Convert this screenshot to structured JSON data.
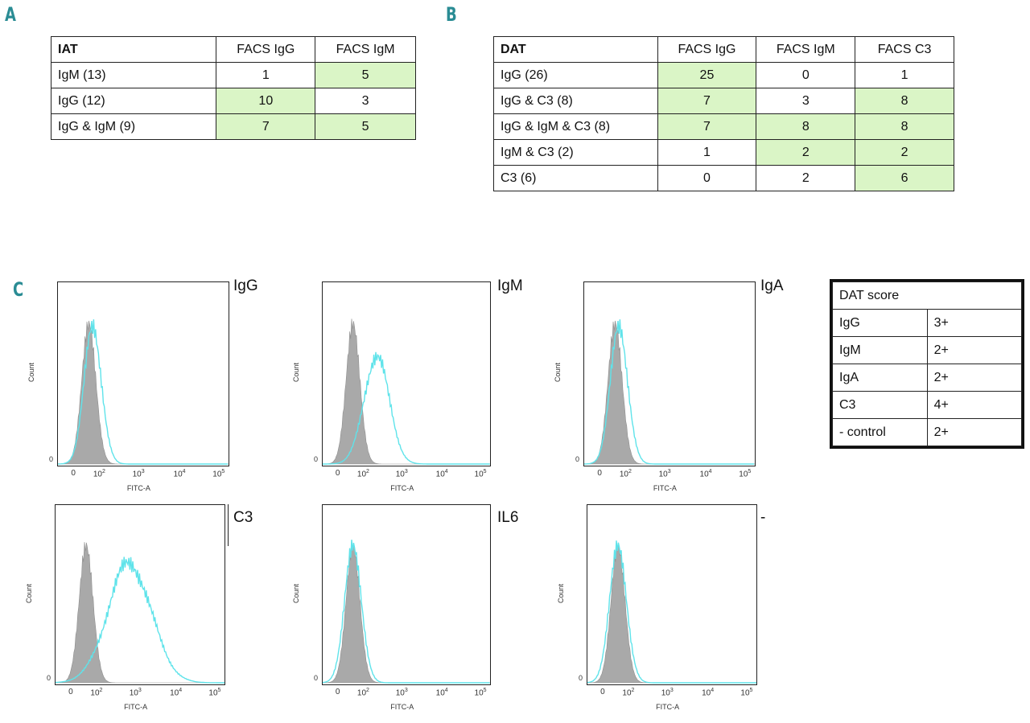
{
  "panels": {
    "a": "A",
    "b": "B",
    "c": "C"
  },
  "colors": {
    "highlight": "#daf5c6",
    "control_fill": "#a9a9a9",
    "sample_line": "#5fe3ea",
    "letter": "#2a8c94"
  },
  "table_a": {
    "header": [
      "IAT",
      "FACS IgG",
      "FACS IgM"
    ],
    "rows": [
      {
        "label": "IgM (13)",
        "igg": "1",
        "igm": "5"
      },
      {
        "label": "IgG (12)",
        "igg": "10",
        "igm": "3"
      },
      {
        "label": "IgG & IgM (9)",
        "igg": "7",
        "igm": "5"
      }
    ]
  },
  "table_b": {
    "header": [
      "DAT",
      "FACS IgG",
      "FACS IgM",
      "FACS C3"
    ],
    "rows": [
      {
        "label": "IgG (26)",
        "igg": "25",
        "igm": "0",
        "c3": "1"
      },
      {
        "label": "IgG & C3 (8)",
        "igg": "7",
        "igm": "3",
        "c3": "8"
      },
      {
        "label": "IgG & IgM & C3 (8)",
        "igg": "7",
        "igm": "8",
        "c3": "8"
      },
      {
        "label": "IgM & C3 (2)",
        "igg": "1",
        "igm": "2",
        "c3": "2"
      },
      {
        "label": "C3 (6)",
        "igg": "0",
        "igm": "2",
        "c3": "6"
      }
    ]
  },
  "dat_score": {
    "title": "DAT score",
    "rows": [
      {
        "label": "IgG",
        "score": "3+"
      },
      {
        "label": "IgM",
        "score": "2+"
      },
      {
        "label": "IgA",
        "score": "2+"
      },
      {
        "label": "C3",
        "score": "4+"
      },
      {
        "label": "- control",
        "score": "2+"
      }
    ]
  },
  "histograms": {
    "common": {
      "ylabel": "Count",
      "xlabel": "FITC-A",
      "zero": "0",
      "tick_base": "10",
      "ticks": [
        "2",
        "3",
        "4",
        "5"
      ],
      "tick_zero": "0"
    },
    "plots": [
      {
        "label": "IgG",
        "sample_center": 1.85,
        "sample_width": 0.22
      },
      {
        "label": "IgM",
        "sample_center": 2.35,
        "sample_width": 0.32
      },
      {
        "label": "IgA",
        "sample_center": 1.85,
        "sample_width": 0.22
      },
      {
        "label": "C3",
        "sample_center": 2.85,
        "sample_width": 0.55
      },
      {
        "label": "IL6",
        "sample_center": 1.75,
        "sample_width": 0.22
      },
      {
        "label": "-",
        "sample_center": 1.75,
        "sample_width": 0.22
      }
    ]
  },
  "chart_data": [
    {
      "type": "area",
      "title": "IgG",
      "xlabel": "FITC-A",
      "ylabel": "Count",
      "x_scale": "log (biexponential)",
      "x_ticks": [
        "0",
        "10^2",
        "10^3",
        "10^4",
        "10^5"
      ],
      "series": [
        {
          "name": "control",
          "peak_log10": 1.75
        },
        {
          "name": "IgG",
          "peak_log10": 1.85
        }
      ]
    },
    {
      "type": "area",
      "title": "IgM",
      "xlabel": "FITC-A",
      "ylabel": "Count",
      "x_scale": "log (biexponential)",
      "x_ticks": [
        "0",
        "10^2",
        "10^3",
        "10^4",
        "10^5"
      ],
      "series": [
        {
          "name": "control",
          "peak_log10": 1.75
        },
        {
          "name": "IgM",
          "peak_log10": 2.35
        }
      ]
    },
    {
      "type": "area",
      "title": "IgA",
      "xlabel": "FITC-A",
      "ylabel": "Count",
      "x_scale": "log (biexponential)",
      "x_ticks": [
        "0",
        "10^2",
        "10^3",
        "10^4",
        "10^5"
      ],
      "series": [
        {
          "name": "control",
          "peak_log10": 1.75
        },
        {
          "name": "IgA",
          "peak_log10": 1.85
        }
      ]
    },
    {
      "type": "area",
      "title": "C3",
      "xlabel": "FITC-A",
      "ylabel": "Count",
      "x_scale": "log (biexponential)",
      "x_ticks": [
        "0",
        "10^2",
        "10^3",
        "10^4",
        "10^5"
      ],
      "series": [
        {
          "name": "control",
          "peak_log10": 1.75
        },
        {
          "name": "C3",
          "peak_log10": 2.85
        }
      ]
    },
    {
      "type": "area",
      "title": "IL6",
      "xlabel": "FITC-A",
      "ylabel": "Count",
      "x_scale": "log (biexponential)",
      "x_ticks": [
        "0",
        "10^2",
        "10^3",
        "10^4",
        "10^5"
      ],
      "series": [
        {
          "name": "control",
          "peak_log10": 1.75
        },
        {
          "name": "IL6",
          "peak_log10": 1.75
        }
      ]
    },
    {
      "type": "area",
      "title": "-",
      "xlabel": "FITC-A",
      "ylabel": "Count",
      "x_scale": "log (biexponential)",
      "x_ticks": [
        "0",
        "10^2",
        "10^3",
        "10^4",
        "10^5"
      ],
      "series": [
        {
          "name": "control",
          "peak_log10": 1.75
        },
        {
          "name": "-",
          "peak_log10": 1.75
        }
      ]
    }
  ]
}
